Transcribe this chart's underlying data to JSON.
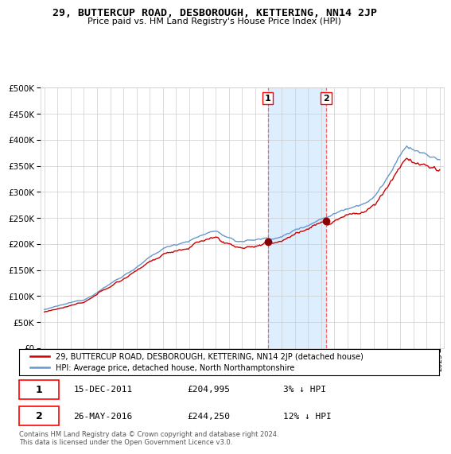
{
  "title": "29, BUTTERCUP ROAD, DESBOROUGH, KETTERING, NN14 2JP",
  "subtitle": "Price paid vs. HM Land Registry's House Price Index (HPI)",
  "property_label": "29, BUTTERCUP ROAD, DESBOROUGH, KETTERING, NN14 2JP (detached house)",
  "hpi_label": "HPI: Average price, detached house, North Northamptonshire",
  "transaction1_date": "15-DEC-2011",
  "transaction1_price": 204995,
  "transaction1_pct": "3%",
  "transaction1_year": 2011.96,
  "transaction2_date": "26-MAY-2016",
  "transaction2_price": 244250,
  "transaction2_pct": "12%",
  "transaction2_year": 2016.38,
  "year_start": 1995,
  "year_end": 2025,
  "ymin": 0,
  "ymax": 500000,
  "footer": "Contains HM Land Registry data © Crown copyright and database right 2024.\nThis data is licensed under the Open Government Licence v3.0.",
  "property_color": "#cc0000",
  "hpi_color": "#6699cc",
  "shade_color": "#ddeeff",
  "grid_color": "#cccccc",
  "bg_color": "#ffffff"
}
